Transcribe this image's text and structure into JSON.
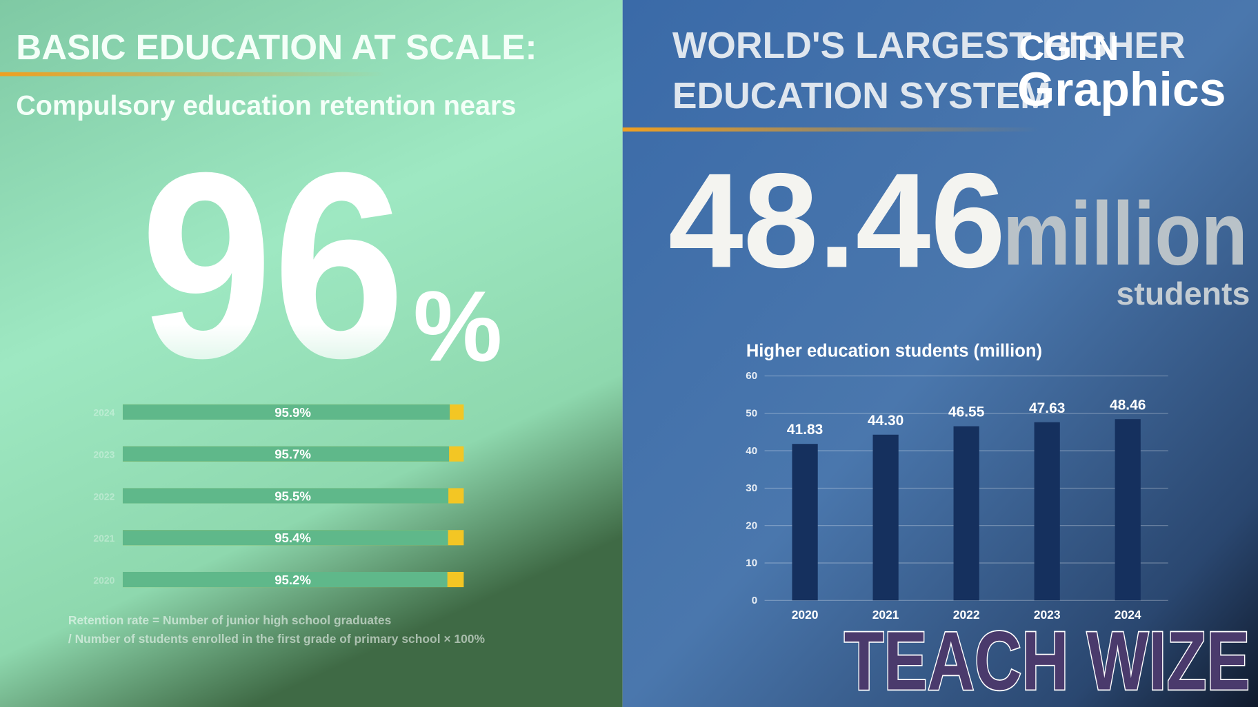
{
  "chart_data": [
    {
      "type": "hbar",
      "title": "BASIC EDUCATION AT SCALE:",
      "subtitle": "Compulsory education retention nears",
      "headline": {
        "number": "96",
        "unit": "%"
      },
      "categories": [
        "2024",
        "2023",
        "2022",
        "2021",
        "2020"
      ],
      "values": [
        95.9,
        95.7,
        95.5,
        95.4,
        95.2
      ],
      "value_labels": [
        "95.9%",
        "95.7%",
        "95.5%",
        "95.4%",
        "95.2%"
      ],
      "color": "#5fb88a",
      "track_color": "#f3c624",
      "xlim": [
        0,
        100
      ],
      "footnote": [
        "Retention rate = Number of junior high school graduates",
        "/ Number of students enrolled in the first grade of primary school × 100%"
      ]
    },
    {
      "type": "bar",
      "title": [
        "WORLD'S LARGEST HIGHER",
        "EDUCATION SYSTEM"
      ],
      "headline": {
        "number": "48.46",
        "unit": "million",
        "caption": "students"
      },
      "chart_title": "Higher education students (million)",
      "categories": [
        "2020",
        "2021",
        "2022",
        "2023",
        "2024"
      ],
      "values": [
        41.83,
        44.3,
        46.55,
        47.63,
        48.46
      ],
      "value_labels": [
        "41.83",
        "44.30",
        "46.55",
        "47.63",
        "48.46"
      ],
      "color": "#15305e",
      "ylim": [
        0,
        60
      ],
      "yticks": [
        0,
        10,
        20,
        30,
        40,
        50,
        60
      ],
      "grid": true
    }
  ],
  "overlay": {
    "logo": [
      "CGTN",
      "Graphics"
    ],
    "watermark": "TEACH WIZE"
  }
}
